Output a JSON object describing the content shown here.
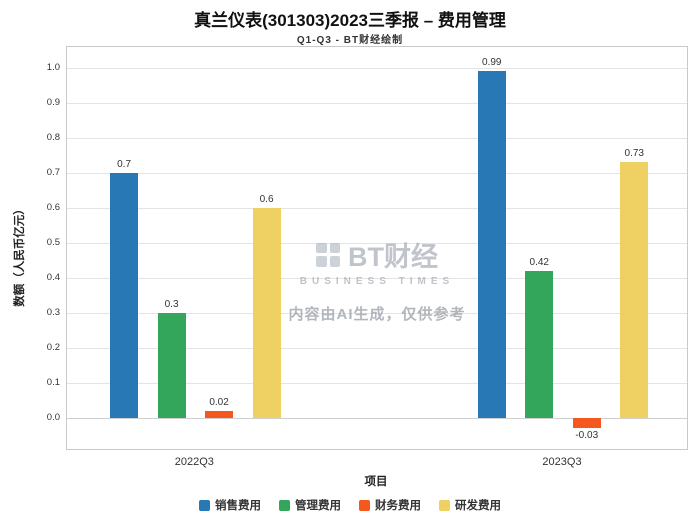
{
  "title": "真兰仪表(301303)2023三季报 – 费用管理",
  "subtitle": "Q1-Q3 - BT财经绘制",
  "watermark": {
    "brand": "BT财经",
    "brand_sub": "BUSINESS TIMES",
    "notice": "内容由AI生成，仅供参考"
  },
  "chart_data": {
    "type": "bar",
    "title": "真兰仪表(301303)2023三季报 – 费用管理",
    "subtitle": "Q1-Q3 - BT财经绘制",
    "categories": [
      "2022Q3",
      "2023Q3"
    ],
    "series": [
      {
        "name": "销售费用",
        "color": "#2878b5",
        "values": [
          0.7,
          0.99
        ]
      },
      {
        "name": "管理费用",
        "color": "#33a65c",
        "values": [
          0.3,
          0.42
        ]
      },
      {
        "name": "财务费用",
        "color": "#f4581f",
        "values": [
          0.02,
          -0.03
        ]
      },
      {
        "name": "研发费用",
        "color": "#eed162",
        "values": [
          0.6,
          0.73
        ]
      }
    ],
    "xlabel": "项目",
    "ylabel": "数额（人民币亿元）",
    "ylim": [
      -0.09,
      1.06
    ],
    "yticks": [
      0.0,
      0.1,
      0.2,
      0.3,
      0.4,
      0.5,
      0.6,
      0.7,
      0.8,
      0.9,
      1.0
    ],
    "grid": true,
    "legend_position": "bottom"
  }
}
